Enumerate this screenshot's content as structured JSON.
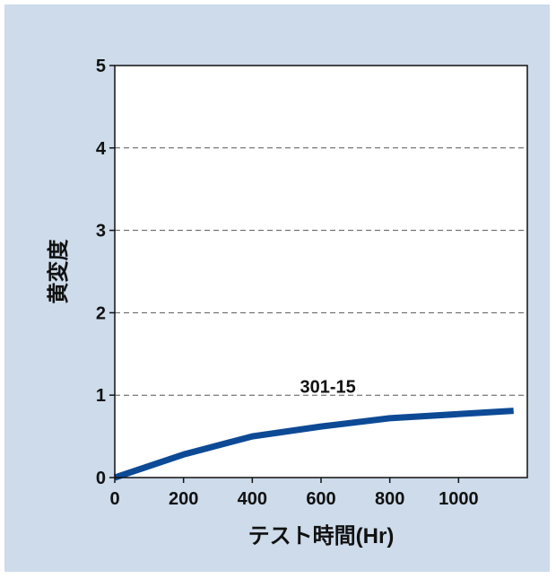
{
  "chart_data": {
    "type": "line",
    "title": "",
    "xlabel": "テスト時間(Hr)",
    "ylabel": "黄変度",
    "xlim": [
      0,
      1200
    ],
    "ylim": [
      0,
      5
    ],
    "x_ticks": [
      0,
      200,
      400,
      600,
      800,
      1000
    ],
    "x_tick_labels": [
      "0",
      "200",
      "400",
      "600",
      "800",
      "1000"
    ],
    "y_ticks": [
      0,
      1,
      2,
      3,
      4,
      5
    ],
    "y_tick_labels": [
      "0",
      "1",
      "2",
      "3",
      "4",
      "5"
    ],
    "grid": "horizontal-dashed",
    "series": [
      {
        "name": "301-15",
        "color": "#0d4a96",
        "x": [
          0,
          200,
          400,
          600,
          800,
          1000,
          1160
        ],
        "y": [
          0,
          0.28,
          0.5,
          0.62,
          0.72,
          0.77,
          0.81
        ]
      }
    ],
    "colors": {
      "background": "#cddbea",
      "plot": "#ffffff",
      "grid": "#555555",
      "axis": "#111111"
    }
  }
}
